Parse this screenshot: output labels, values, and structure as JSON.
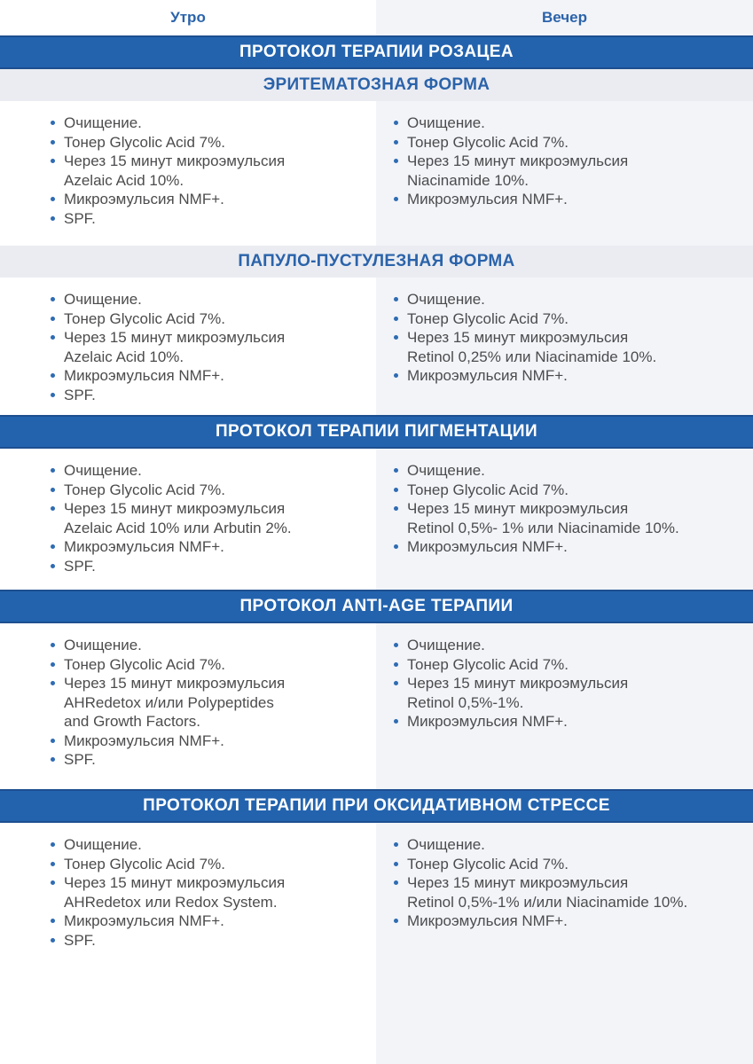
{
  "columns_header": {
    "morning": "Утро",
    "evening": "Вечер"
  },
  "colors": {
    "band_blue": "#2363ae",
    "band_blue_edge": "#1d4f90",
    "accent_blue_text": "#2b63aa",
    "subband_bg": "#eaecf2",
    "evening_column_bg": "#f2f4f8",
    "body_text": "#4c4c4e",
    "bullet_blue": "#2e6bb2"
  },
  "protocol_rosacea": {
    "title": "ПРОТОКОЛ ТЕРАПИИ РОЗАЦЕА",
    "erythematous": {
      "title": "ЭРИТЕМАТОЗНАЯ ФОРМА",
      "morning": [
        "Очищение.",
        "Тонер Glycolic Acid 7%.",
        "Через 15 минут микроэмульсия\nAzelaic Acid 10%.",
        "Микроэмульсия NMF+.",
        "SPF."
      ],
      "evening": [
        "Очищение.",
        "Тонер Glycolic Acid 7%.",
        "Через 15 минут микроэмульсия\nNiacinamide 10%.",
        "Микроэмульсия NMF+."
      ]
    },
    "papulopustular": {
      "title": "ПАПУЛО-ПУСТУЛЕЗНАЯ ФОРМА",
      "morning": [
        "Очищение.",
        "Тонер Glycolic Acid 7%.",
        "Через 15 минут микроэмульсия\nAzelaic Acid 10%.",
        "Микроэмульсия NMF+.",
        "SPF."
      ],
      "evening": [
        "Очищение.",
        "Тонер Glycolic Acid 7%.",
        "Через 15 минут микроэмульсия\nRetinol 0,25% или Niacinamide 10%.",
        "Микроэмульсия NMF+."
      ]
    }
  },
  "protocol_pigmentation": {
    "title": "ПРОТОКОЛ ТЕРАПИИ ПИГМЕНТАЦИИ",
    "morning": [
      "Очищение.",
      "Тонер Glycolic Acid 7%.",
      "Через 15 минут микроэмульсия\nAzelaic Acid 10% или Arbutin 2%.",
      "Микроэмульсия NMF+.",
      "SPF."
    ],
    "evening": [
      "Очищение.",
      "Тонер Glycolic Acid 7%.",
      "Через 15 минут микроэмульсия\nRetinol 0,5%- 1% или Niacinamide 10%.",
      "Микроэмульсия NMF+."
    ]
  },
  "protocol_antiage": {
    "title": "ПРОТОКОЛ ANTI-AGE ТЕРАПИИ",
    "morning": [
      "Очищение.",
      "Тонер Glycolic Acid 7%.",
      "Через 15 минут микроэмульсия\nAHRedetox и/или Polypeptides\nand Growth Factors.",
      "Микроэмульсия NMF+.",
      "SPF."
    ],
    "evening": [
      "Очищение.",
      "Тонер Glycolic Acid 7%.",
      "Через 15 минут микроэмульсия\nRetinol 0,5%-1%.",
      "Микроэмульсия NMF+."
    ]
  },
  "protocol_oxidative_stress": {
    "title": "ПРОТОКОЛ ТЕРАПИИ ПРИ ОКСИДАТИВНОМ СТРЕССЕ",
    "morning": [
      "Очищение.",
      "Тонер Glycolic Acid 7%.",
      "Через 15 минут микроэмульсия\nAHRedetox или Redox System.",
      "Микроэмульсия NMF+.",
      "SPF."
    ],
    "evening": [
      "Очищение.",
      "Тонер Glycolic Acid 7%.",
      "Через 15 минут микроэмульсия\nRetinol 0,5%-1% и/или Niacinamide 10%.",
      "Микроэмульсия NMF+."
    ]
  }
}
